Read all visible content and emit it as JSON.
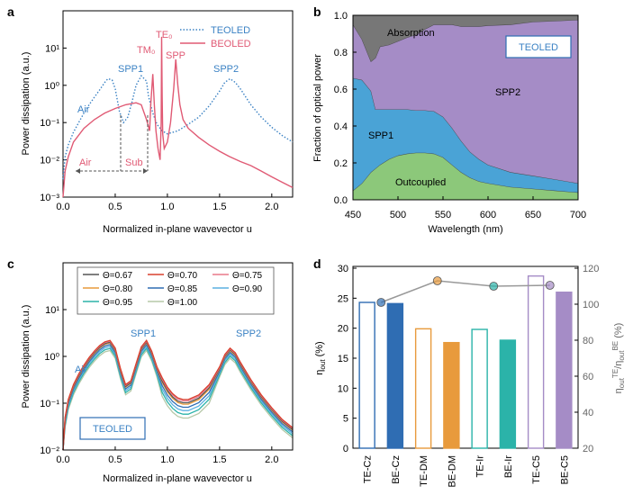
{
  "colors": {
    "teoled": "#3b82c4",
    "beoled": "#e05a74",
    "absorption": "#777777",
    "spp2_area": "#a58cc6",
    "spp1_area": "#4aa3d6",
    "outcoupled": "#8cc87a"
  },
  "panel_labels": [
    "a",
    "b",
    "c",
    "d"
  ],
  "chart_data": [
    {
      "panel": "a",
      "type": "line",
      "xlabel": "Normalized in-plane wavevector u",
      "ylabel": "Power dissipation (a.u.)",
      "xlim": [
        0,
        2.2
      ],
      "ylim": [
        0.001,
        100
      ],
      "yscale": "log",
      "xticks": [
        "0.0",
        "0.5",
        "1.0",
        "1.5",
        "2.0"
      ],
      "yticks": [
        "10⁻³",
        "10⁻²",
        "10⁻¹",
        "10⁰",
        "10¹"
      ],
      "legend": [
        "TEOLED",
        "BEOLED"
      ],
      "legend_position": "top-right",
      "annotations": {
        "air_blue": "Air",
        "spp1": "SPP1",
        "spp2": "SPP2",
        "tm0": "TM₀",
        "te0": "TE₀",
        "spp": "SPP",
        "air_pink": "Air",
        "sub": "Sub"
      },
      "series": [
        {
          "name": "TEOLED",
          "style": "dotted",
          "x": [
            0.0,
            0.02,
            0.05,
            0.1,
            0.15,
            0.2,
            0.25,
            0.3,
            0.35,
            0.4,
            0.43,
            0.47,
            0.5,
            0.54,
            0.58,
            0.62,
            0.66,
            0.7,
            0.75,
            0.8,
            0.82,
            0.86,
            0.9,
            0.95,
            1.0,
            1.1,
            1.2,
            1.3,
            1.4,
            1.5,
            1.55,
            1.6,
            1.65,
            1.7,
            1.8,
            1.9,
            2.0,
            2.1,
            2.2
          ],
          "y": [
            0.003,
            0.012,
            0.025,
            0.055,
            0.1,
            0.18,
            0.3,
            0.48,
            0.75,
            1.2,
            1.5,
            1.4,
            0.8,
            0.2,
            0.1,
            0.14,
            0.35,
            1.0,
            1.8,
            1.3,
            0.5,
            0.18,
            0.09,
            0.06,
            0.05,
            0.06,
            0.09,
            0.14,
            0.28,
            0.7,
            1.2,
            1.5,
            1.2,
            0.8,
            0.3,
            0.14,
            0.075,
            0.045,
            0.03
          ]
        },
        {
          "name": "BEOLED",
          "style": "solid",
          "x": [
            0.0,
            0.02,
            0.05,
            0.1,
            0.2,
            0.3,
            0.4,
            0.5,
            0.6,
            0.7,
            0.75,
            0.8,
            0.83,
            0.84,
            0.86,
            0.875,
            0.89,
            0.91,
            0.93,
            0.94,
            0.945,
            0.95,
            0.955,
            0.97,
            1.0,
            1.03,
            1.06,
            1.08,
            1.1,
            1.12,
            1.15,
            1.2,
            1.3,
            1.4,
            1.5,
            1.6,
            1.7,
            1.8,
            1.9,
            2.0,
            2.1,
            2.2
          ],
          "y": [
            0.001,
            0.005,
            0.012,
            0.03,
            0.07,
            0.12,
            0.18,
            0.24,
            0.3,
            0.34,
            0.3,
            0.12,
            0.06,
            0.3,
            2.0,
            0.3,
            0.06,
            0.02,
            0.01,
            0.1,
            20,
            0.5,
            0.05,
            0.02,
            0.03,
            0.1,
            0.8,
            5,
            1.0,
            0.3,
            0.12,
            0.07,
            0.04,
            0.025,
            0.017,
            0.012,
            0.009,
            0.007,
            0.005,
            0.0035,
            0.0025,
            0.0018
          ]
        }
      ]
    },
    {
      "panel": "b",
      "type": "area",
      "xlabel": "Wavelength (nm)",
      "ylabel": "Fraction of optical power",
      "xlim": [
        450,
        700
      ],
      "ylim": [
        0,
        1
      ],
      "xticks": [
        "450",
        "500",
        "550",
        "600",
        "650",
        "700"
      ],
      "yticks": [
        "0.0",
        "0.2",
        "0.4",
        "0.6",
        "0.8",
        "1.0"
      ],
      "box_label": "TEOLED",
      "x": [
        450,
        460,
        470,
        475,
        480,
        490,
        500,
        510,
        520,
        530,
        540,
        550,
        560,
        570,
        580,
        590,
        600,
        625,
        650,
        675,
        700
      ],
      "series": [
        {
          "name": "Outcoupled",
          "values": [
            0.05,
            0.09,
            0.15,
            0.17,
            0.19,
            0.22,
            0.24,
            0.25,
            0.255,
            0.255,
            0.25,
            0.23,
            0.19,
            0.15,
            0.12,
            0.1,
            0.09,
            0.07,
            0.06,
            0.05,
            0.04
          ]
        },
        {
          "name": "SPP1",
          "values": [
            0.61,
            0.56,
            0.44,
            0.32,
            0.3,
            0.27,
            0.25,
            0.24,
            0.23,
            0.23,
            0.23,
            0.22,
            0.2,
            0.17,
            0.14,
            0.12,
            0.1,
            0.08,
            0.07,
            0.06,
            0.05
          ]
        },
        {
          "name": "SPP2",
          "values": [
            0.29,
            0.22,
            0.16,
            0.28,
            0.34,
            0.35,
            0.37,
            0.39,
            0.41,
            0.44,
            0.47,
            0.5,
            0.56,
            0.62,
            0.68,
            0.72,
            0.755,
            0.8,
            0.835,
            0.86,
            0.885
          ]
        },
        {
          "name": "Absorption",
          "values": [
            0.05,
            0.13,
            0.25,
            0.23,
            0.17,
            0.16,
            0.14,
            0.12,
            0.105,
            0.075,
            0.05,
            0.05,
            0.05,
            0.06,
            0.06,
            0.06,
            0.055,
            0.05,
            0.035,
            0.03,
            0.025
          ]
        }
      ]
    },
    {
      "panel": "c",
      "type": "line",
      "xlabel": "Normalized in-plane wavevector u",
      "ylabel": "Power dissipation (a.u.)",
      "xlim": [
        0,
        2.2
      ],
      "ylim": [
        0.01,
        100
      ],
      "yscale": "log",
      "xticks": [
        "0.0",
        "0.5",
        "1.0",
        "1.5",
        "2.0"
      ],
      "yticks": [
        "10⁻²",
        "10⁻¹",
        "10⁰",
        "10¹"
      ],
      "box_label": "TEOLED",
      "annotations": {
        "air": "Air",
        "spp1": "SPP1",
        "spp2": "SPP2"
      },
      "x": [
        0.0,
        0.02,
        0.05,
        0.1,
        0.15,
        0.2,
        0.25,
        0.3,
        0.35,
        0.4,
        0.45,
        0.5,
        0.55,
        0.6,
        0.65,
        0.7,
        0.75,
        0.8,
        0.85,
        0.9,
        0.95,
        1.0,
        1.05,
        1.1,
        1.15,
        1.2,
        1.3,
        1.4,
        1.5,
        1.55,
        1.6,
        1.65,
        1.7,
        1.8,
        1.9,
        2.0,
        2.1,
        2.2
      ],
      "base_values": [
        0.01,
        0.05,
        0.12,
        0.25,
        0.42,
        0.65,
        0.95,
        1.3,
        1.7,
        2.05,
        2.2,
        1.5,
        0.55,
        0.25,
        0.3,
        0.7,
        1.6,
        2.2,
        1.3,
        0.6,
        0.35,
        0.22,
        0.16,
        0.13,
        0.12,
        0.12,
        0.15,
        0.25,
        0.6,
        1.1,
        1.5,
        1.2,
        0.75,
        0.32,
        0.15,
        0.08,
        0.045,
        0.03
      ],
      "series": [
        {
          "name": "Θ=0.67",
          "color": "#555555",
          "scale": 0.93
        },
        {
          "name": "Θ=0.70",
          "color": "#d9412e",
          "scale": 1.0
        },
        {
          "name": "Θ=0.75",
          "color": "#e8788a",
          "scale": 0.97
        },
        {
          "name": "Θ=0.80",
          "color": "#e89a3c",
          "scale": 0.9
        },
        {
          "name": "Θ=0.85",
          "color": "#2f6db3",
          "scale": 0.84
        },
        {
          "name": "Θ=0.90",
          "color": "#5bb0e0",
          "scale": 0.78
        },
        {
          "name": "Θ=0.95",
          "color": "#2bb3a9",
          "scale": 0.72
        },
        {
          "name": "Θ=1.00",
          "color": "#b5c8a8",
          "scale": 0.66
        }
      ]
    },
    {
      "panel": "d",
      "type": "bar",
      "categories": [
        "TE-Cz",
        "BE-Cz",
        "TE-DM",
        "BE-DM",
        "TE-Ir",
        "BE-Ir",
        "TE-C5",
        "BE-C5"
      ],
      "values": [
        24.3,
        24.1,
        19.9,
        17.6,
        19.8,
        18.0,
        28.7,
        26.0
      ],
      "filled": [
        false,
        true,
        false,
        true,
        false,
        true,
        false,
        true
      ],
      "colors": [
        "#2f6db3",
        "#2f6db3",
        "#e89a3c",
        "#e89a3c",
        "#2bb3a9",
        "#2bb3a9",
        "#a58cc6",
        "#a58cc6"
      ],
      "ylabel": "η_out (%)",
      "ylim": [
        0,
        30
      ],
      "yticks": [
        "0",
        "5",
        "10",
        "15",
        "20",
        "25",
        "30"
      ],
      "y2label": "η_out^TE/η_out^BE (%)",
      "y2lim": [
        20,
        120
      ],
      "y2ticks": [
        "20",
        "40",
        "60",
        "80",
        "100",
        "120"
      ],
      "ratio_series": {
        "values": [
          101,
          113,
          110,
          110.5
        ],
        "colors": [
          "#2f6db3",
          "#e89a3c",
          "#2bb3a9",
          "#a58cc6"
        ]
      }
    }
  ]
}
